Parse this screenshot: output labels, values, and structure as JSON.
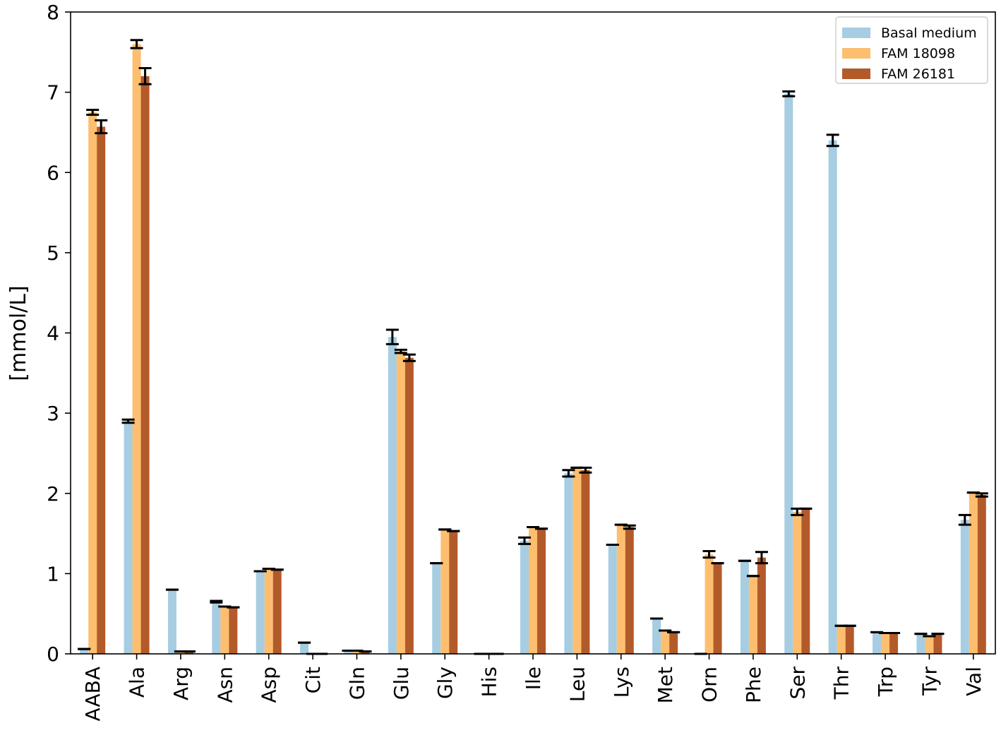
{
  "chart_data": {
    "type": "bar",
    "title": "",
    "xlabel": "",
    "ylabel": "[mmol/L]",
    "ylim": [
      0,
      8
    ],
    "yticks": [
      0,
      1,
      2,
      3,
      4,
      5,
      6,
      7,
      8
    ],
    "grid": false,
    "legend_position": "top-right",
    "categories": [
      "AABA",
      "Ala",
      "Arg",
      "Asn",
      "Asp",
      "Cit",
      "Gln",
      "Glu",
      "Gly",
      "His",
      "Ile",
      "Leu",
      "Lys",
      "Met",
      "Orn",
      "Phe",
      "Ser",
      "Thr",
      "Trp",
      "Tyr",
      "Val"
    ],
    "series": [
      {
        "name": "Basal medium",
        "color": "#a6cde2",
        "values": [
          0.06,
          2.9,
          0.8,
          0.65,
          1.03,
          0.14,
          0.04,
          3.95,
          1.13,
          0.0,
          1.41,
          2.25,
          1.36,
          0.44,
          0.0,
          1.16,
          6.98,
          6.4,
          0.27,
          0.25,
          1.67
        ],
        "errors": [
          0.0,
          0.02,
          0.0,
          0.01,
          0.0,
          0.0,
          0.0,
          0.09,
          0.0,
          0.0,
          0.04,
          0.04,
          0.0,
          0.0,
          0.0,
          0.0,
          0.03,
          0.07,
          0.0,
          0.0,
          0.06
        ]
      },
      {
        "name": "FAM 18098",
        "color": "#fdbe6f",
        "values": [
          6.75,
          7.6,
          0.03,
          0.59,
          1.06,
          0.0,
          0.04,
          3.77,
          1.55,
          0.0,
          1.58,
          2.32,
          1.61,
          0.29,
          1.24,
          0.97,
          1.77,
          0.35,
          0.26,
          0.22,
          2.01
        ],
        "errors": [
          0.03,
          0.05,
          0.0,
          0.0,
          0.0,
          0.0,
          0.0,
          0.02,
          0.0,
          0.0,
          0.0,
          0.0,
          0.0,
          0.0,
          0.04,
          0.0,
          0.04,
          0.0,
          0.0,
          0.0,
          0.0
        ]
      },
      {
        "name": "FAM 26181",
        "color": "#b35a2a",
        "values": [
          6.57,
          7.2,
          0.03,
          0.58,
          1.05,
          0.0,
          0.03,
          3.69,
          1.53,
          0.0,
          1.56,
          2.29,
          1.58,
          0.27,
          1.13,
          1.2,
          1.81,
          0.35,
          0.26,
          0.25,
          1.98
        ],
        "errors": [
          0.08,
          0.1,
          0.0,
          0.0,
          0.0,
          0.0,
          0.0,
          0.04,
          0.0,
          0.0,
          0.0,
          0.03,
          0.02,
          0.0,
          0.0,
          0.07,
          0.0,
          0.0,
          0.0,
          0.0,
          0.02
        ]
      }
    ]
  }
}
